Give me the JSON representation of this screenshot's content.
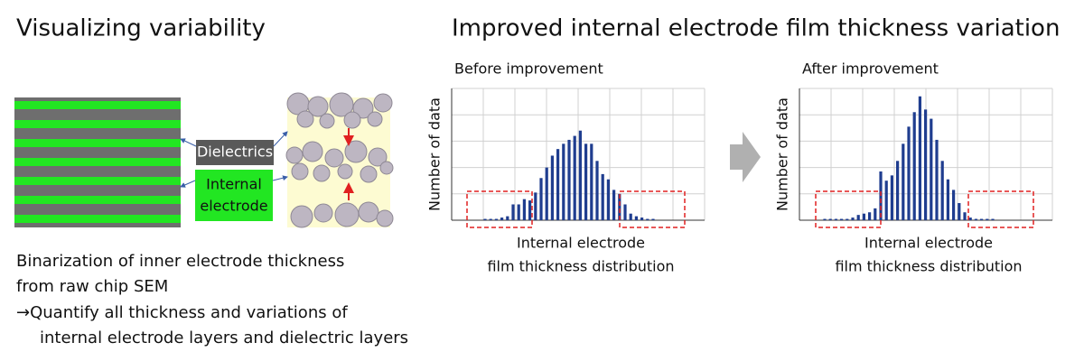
{
  "left_title": "Visualizing variability",
  "right_title": "Improved internal electrode film thickness variation",
  "labels": {
    "dielectrics": "Dielectrics",
    "electrode": [
      "Internal",
      "electrode"
    ]
  },
  "description": [
    "Binarization of inner electrode thickness",
    "from raw chip SEM",
    "→Quantify all thickness and variations of",
    "internal electrode layers and dielectric layers"
  ],
  "chart_data": [
    {
      "type": "bar",
      "title": "Before improvement",
      "y_label": "Number of data",
      "x_label": [
        "Internal electrode",
        "film thickness distribution"
      ],
      "color": "#1f3d8f",
      "ylim": [
        0,
        100
      ],
      "values": [
        1,
        1,
        1,
        2,
        3,
        12,
        12,
        16,
        15,
        21,
        32,
        40,
        49,
        54,
        58,
        61,
        64,
        68,
        58,
        58,
        45,
        35,
        31,
        23,
        20,
        12,
        5,
        3,
        2,
        1,
        1
      ]
    },
    {
      "type": "bar",
      "title": "After improvement",
      "y_label": "Number of data",
      "x_label": [
        "Internal electrode",
        "film thickness distribution"
      ],
      "color": "#1f3d8f",
      "ylim": [
        0,
        100
      ],
      "values": [
        1,
        1,
        1,
        1,
        1,
        2,
        4,
        5,
        6,
        9,
        37,
        30,
        34,
        45,
        58,
        71,
        82,
        94,
        84,
        77,
        61,
        45,
        31,
        23,
        13,
        6,
        2,
        1,
        1,
        1,
        1
      ]
    }
  ]
}
